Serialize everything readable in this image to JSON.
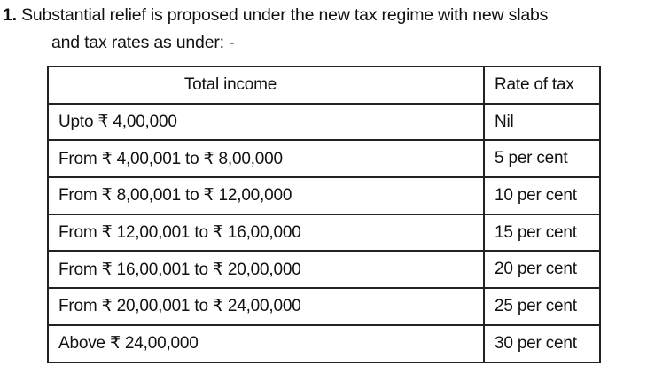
{
  "intro": {
    "number": "1.",
    "line1": "Substantial relief is proposed under the new tax regime with new slabs",
    "line2": "and tax rates as under: -"
  },
  "table": {
    "headers": [
      "Total income",
      "Rate of tax"
    ],
    "rows": [
      {
        "income": "Upto ₹ 4,00,000",
        "rate": "Nil"
      },
      {
        "income": "From ₹ 4,00,001 to ₹ 8,00,000",
        "rate": "5 per cent"
      },
      {
        "income": "From ₹ 8,00,001 to ₹ 12,00,000",
        "rate": "10 per cent"
      },
      {
        "income": "From ₹ 12,00,001 to ₹ 16,00,000",
        "rate": "15 per cent"
      },
      {
        "income": "From ₹ 16,00,001 to ₹ 20,00,000",
        "rate": "20 per cent"
      },
      {
        "income": "From ₹ 20,00,001 to ₹ 24,00,000",
        "rate": "25 per cent"
      },
      {
        "income": "Above ₹ 24,00,000",
        "rate": "30 per cent"
      }
    ]
  }
}
